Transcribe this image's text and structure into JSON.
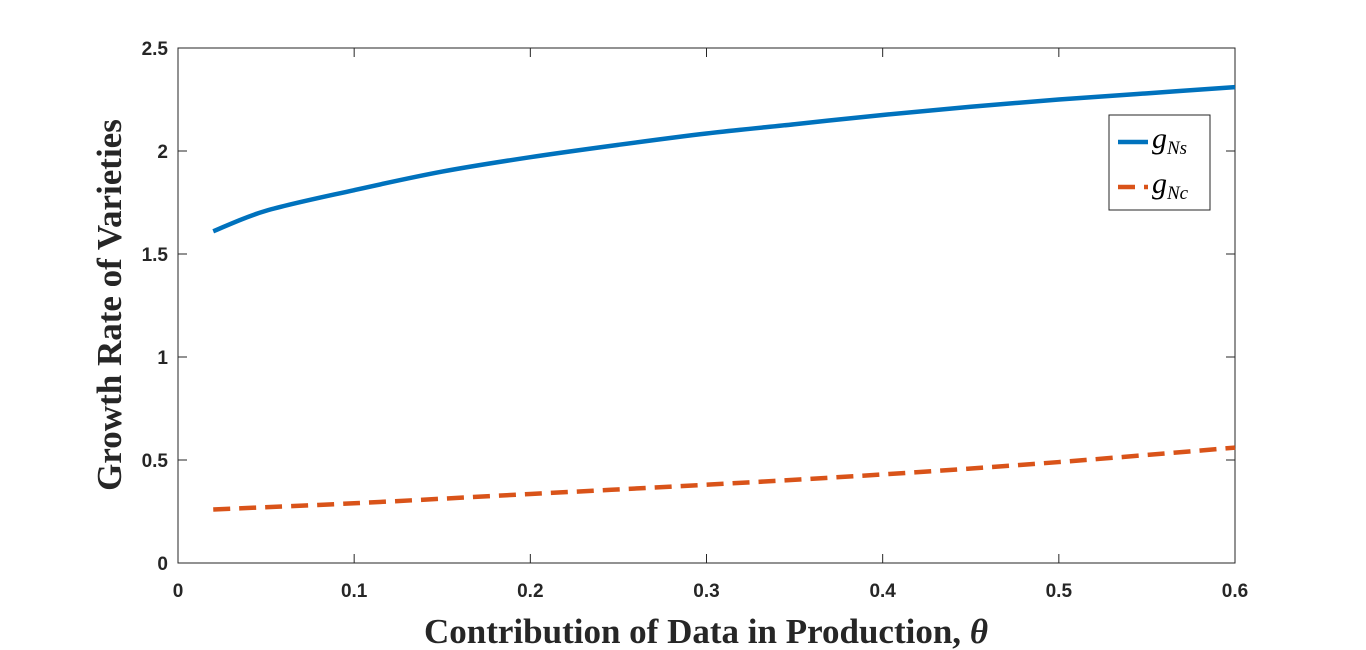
{
  "chart_data": {
    "type": "line",
    "title": "",
    "xlabel": "Contribution of Data in Production, ",
    "xlabel_symbol": "θ",
    "ylabel": "Growth Rate of Varieties",
    "xlim": [
      0,
      0.6
    ],
    "ylim": [
      0,
      2.5
    ],
    "xticks": [
      "0",
      "0.1",
      "0.2",
      "0.3",
      "0.4",
      "0.5",
      "0.6"
    ],
    "yticks": [
      "0",
      "0.5",
      "1",
      "1.5",
      "2",
      "2.5"
    ],
    "grid": false,
    "legend_position": "top-right",
    "series": [
      {
        "name": "g_Ns",
        "legend_main": "g",
        "legend_sub": "Ns",
        "color": "#0072BD",
        "style": "solid",
        "x": [
          0.02,
          0.05,
          0.1,
          0.15,
          0.2,
          0.25,
          0.3,
          0.35,
          0.4,
          0.45,
          0.5,
          0.55,
          0.6
        ],
        "y": [
          1.61,
          1.71,
          1.81,
          1.9,
          1.97,
          2.03,
          2.085,
          2.13,
          2.175,
          2.215,
          2.25,
          2.28,
          2.31
        ]
      },
      {
        "name": "g_Nc",
        "legend_main": "g",
        "legend_sub": "Nc",
        "color": "#D95319",
        "style": "dashed",
        "x": [
          0.02,
          0.1,
          0.2,
          0.3,
          0.4,
          0.5,
          0.6
        ],
        "y": [
          0.26,
          0.29,
          0.335,
          0.38,
          0.43,
          0.49,
          0.56
        ]
      }
    ]
  }
}
